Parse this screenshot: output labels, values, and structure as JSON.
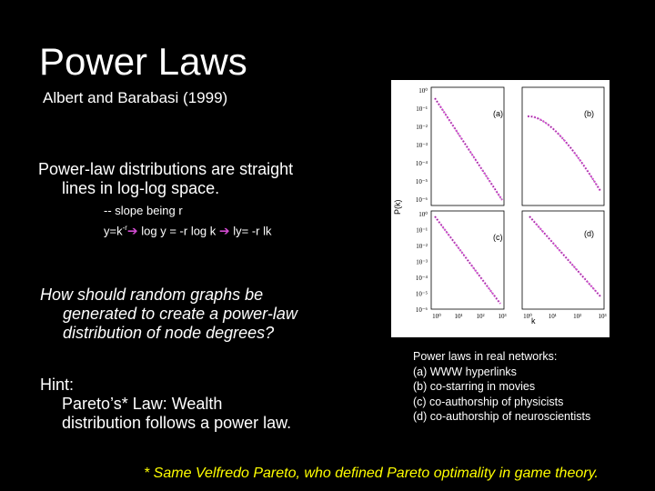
{
  "title": "Power Laws",
  "subtitle": "Albert and Barabasi (1999)",
  "claim": {
    "line1": "Power-law distributions are straight",
    "line2": "lines in log-log space."
  },
  "slope": {
    "line1": "-- slope being r",
    "formula_a": "y=k",
    "formula_exp": "-r",
    "formula_b": " log y = -r log k ",
    "formula_c": " ly= -r lk"
  },
  "question": {
    "line1": "How should random graphs be",
    "line2": "generated to create a power-law",
    "line3": "distribution of node degrees?"
  },
  "hint": {
    "label": "Hint:",
    "line1": "Pareto’s* Law:  Wealth",
    "line2": "distribution follows a power law."
  },
  "caption": {
    "heading": "Power laws in real networks:",
    "items": [
      "(a) WWW hyperlinks",
      "(b) co-starring in movies",
      "(c) co-authorship of physicists",
      "(d) co-authorship of neuroscientists"
    ]
  },
  "footnote": "* Same Velfredo Pareto, who defined Pareto optimality in game theory.",
  "figure": {
    "panels": [
      "(a)",
      "(b)",
      "(c)",
      "(d)"
    ],
    "y_axis_label": "P(k)",
    "x_axis_label": "k",
    "y_ticks_top": [
      "10⁰",
      "10⁻¹",
      "10⁻²",
      "10⁻³",
      "10⁻⁴",
      "10⁻⁵",
      "10⁻⁶"
    ],
    "y_ticks_bottom": [
      "10⁰",
      "10⁻¹",
      "10⁻²",
      "10⁻³",
      "10⁻⁴",
      "10⁻⁵",
      "10⁻⁶"
    ],
    "x_ticks": [
      "10⁰",
      "10¹",
      "10²",
      "10³",
      "10⁰",
      "10¹",
      "10²",
      "10³"
    ],
    "accent_color": "#d14bd0"
  }
}
